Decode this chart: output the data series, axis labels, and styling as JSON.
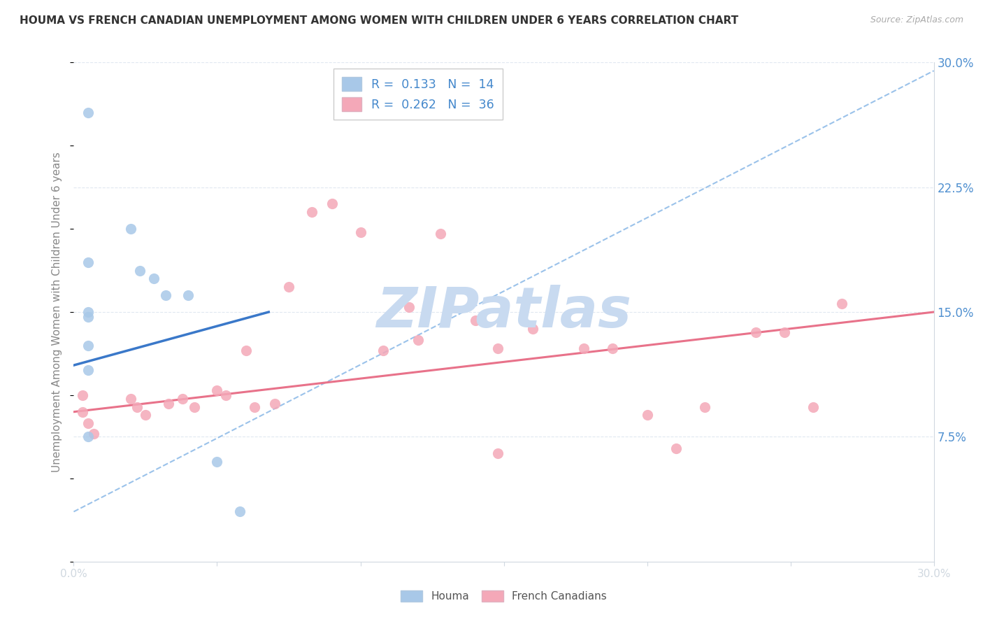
{
  "title": "HOUMA VS FRENCH CANADIAN UNEMPLOYMENT AMONG WOMEN WITH CHILDREN UNDER 6 YEARS CORRELATION CHART",
  "source": "Source: ZipAtlas.com",
  "ylabel": "Unemployment Among Women with Children Under 6 years",
  "xlim": [
    0.0,
    0.3
  ],
  "ylim": [
    0.0,
    0.3
  ],
  "houma_R": "0.133",
  "houma_N": "14",
  "french_R": "0.262",
  "french_N": "36",
  "houma_color": "#a8c8e8",
  "french_color": "#f4a8b8",
  "houma_line_color": "#3a78c9",
  "french_line_color": "#e8728a",
  "dash_line_color": "#90bce8",
  "ytick_color": "#5090d0",
  "xtick_color": "#5090d0",
  "watermark_color": "#c8daf0",
  "watermark_text": "ZIPatlas",
  "legend_R_N_color": "#4488cc",
  "houma_points": [
    [
      0.005,
      0.27
    ],
    [
      0.005,
      0.18
    ],
    [
      0.005,
      0.15
    ],
    [
      0.005,
      0.147
    ],
    [
      0.005,
      0.13
    ],
    [
      0.005,
      0.075
    ],
    [
      0.02,
      0.2
    ],
    [
      0.023,
      0.175
    ],
    [
      0.028,
      0.17
    ],
    [
      0.032,
      0.16
    ],
    [
      0.04,
      0.16
    ],
    [
      0.05,
      0.06
    ],
    [
      0.058,
      0.03
    ],
    [
      0.005,
      0.115
    ]
  ],
  "french_points": [
    [
      0.003,
      0.1
    ],
    [
      0.003,
      0.09
    ],
    [
      0.005,
      0.083
    ],
    [
      0.007,
      0.077
    ],
    [
      0.02,
      0.098
    ],
    [
      0.022,
      0.093
    ],
    [
      0.025,
      0.088
    ],
    [
      0.033,
      0.095
    ],
    [
      0.038,
      0.098
    ],
    [
      0.042,
      0.093
    ],
    [
      0.05,
      0.103
    ],
    [
      0.053,
      0.1
    ],
    [
      0.06,
      0.127
    ],
    [
      0.063,
      0.093
    ],
    [
      0.07,
      0.095
    ],
    [
      0.075,
      0.165
    ],
    [
      0.083,
      0.21
    ],
    [
      0.09,
      0.215
    ],
    [
      0.1,
      0.198
    ],
    [
      0.108,
      0.127
    ],
    [
      0.117,
      0.153
    ],
    [
      0.12,
      0.133
    ],
    [
      0.128,
      0.197
    ],
    [
      0.14,
      0.145
    ],
    [
      0.148,
      0.128
    ],
    [
      0.16,
      0.14
    ],
    [
      0.178,
      0.128
    ],
    [
      0.188,
      0.128
    ],
    [
      0.2,
      0.088
    ],
    [
      0.21,
      0.068
    ],
    [
      0.22,
      0.093
    ],
    [
      0.238,
      0.138
    ],
    [
      0.248,
      0.138
    ],
    [
      0.258,
      0.093
    ],
    [
      0.268,
      0.155
    ],
    [
      0.148,
      0.065
    ]
  ],
  "houma_trend_x": [
    0.0,
    0.068
  ],
  "houma_trend_y": [
    0.118,
    0.15
  ],
  "french_trend_x": [
    0.0,
    0.3
  ],
  "french_trend_y": [
    0.09,
    0.15
  ],
  "dash_trend_x": [
    0.0,
    0.3
  ],
  "dash_trend_y": [
    0.03,
    0.295
  ],
  "ytick_vals": [
    0.075,
    0.15,
    0.225,
    0.3
  ],
  "ytick_labels": [
    "7.5%",
    "15.0%",
    "22.5%",
    "30.0%"
  ],
  "xtick_vals": [
    0.0,
    0.05,
    0.1,
    0.15,
    0.2,
    0.25,
    0.3
  ],
  "xtick_labels": [
    "0.0%",
    "",
    "",
    "",
    "",
    "",
    "30.0%"
  ],
  "bottom_legend": [
    "Houma",
    "French Canadians"
  ],
  "grid_color": "#e0e8f0",
  "spine_color": "#d0d8e0",
  "bg_color": "#ffffff"
}
